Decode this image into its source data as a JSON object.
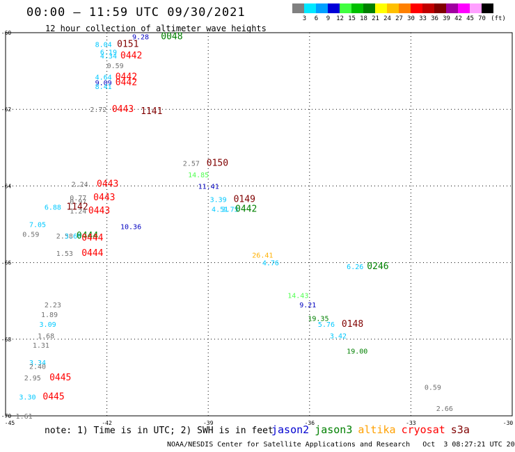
{
  "header": {
    "title": "00:00 – 11:59 UTC 09/30/2021",
    "subtitle": "12 hour collection of altimeter wave heights"
  },
  "legend": {
    "unit": "(ft)",
    "bins": [
      {
        "label": "3",
        "color": "#808080"
      },
      {
        "label": "6",
        "color": "#00e8ff"
      },
      {
        "label": "9",
        "color": "#00a0ff"
      },
      {
        "label": "12",
        "color": "#0000d8"
      },
      {
        "label": "15",
        "color": "#40ff40"
      },
      {
        "label": "18",
        "color": "#00c000"
      },
      {
        "label": "21",
        "color": "#008000"
      },
      {
        "label": "24",
        "color": "#ffff00"
      },
      {
        "label": "27",
        "color": "#ffc000"
      },
      {
        "label": "30",
        "color": "#ff8000"
      },
      {
        "label": "33",
        "color": "#ff0000"
      },
      {
        "label": "36",
        "color": "#c00000"
      },
      {
        "label": "39",
        "color": "#800000"
      },
      {
        "label": "42",
        "color": "#a000a0"
      },
      {
        "label": "45",
        "color": "#ff00ff"
      },
      {
        "label": "70",
        "color": "#ffa0ff"
      },
      {
        "label": "",
        "color": "#000000"
      }
    ]
  },
  "axes": {
    "lon_labels": [
      "-45",
      "-42",
      "-39",
      "-36",
      "-33",
      "-30"
    ],
    "lat_labels": [
      "-60",
      "-62",
      "-64",
      "-66",
      "-68",
      "-70"
    ],
    "lon_range": [
      -45,
      -30
    ],
    "lat_range": [
      -70,
      -60
    ]
  },
  "colors": {
    "gray": "#707070",
    "cyan": "#00c8ff",
    "blue": "#0000c0",
    "ltgreen": "#50ff50",
    "green": "#008000",
    "orange": "#ffb000",
    "red": "#ff0000",
    "darkred": "#800000"
  },
  "observations": [
    {
      "text": "9.28",
      "lon": -41.25,
      "lat": -60.1,
      "c": "blue"
    },
    {
      "text": "0048",
      "lon": -40.4,
      "lat": -60.1,
      "c": "green",
      "pass": true
    },
    {
      "text": "8.04",
      "lon": -42.35,
      "lat": -60.3,
      "c": "cyan"
    },
    {
      "text": "0151",
      "lon": -41.7,
      "lat": -60.3,
      "c": "darkred",
      "pass": true
    },
    {
      "text": "6.19",
      "lon": -42.2,
      "lat": -60.5,
      "c": "cyan"
    },
    {
      "text": "4.34",
      "lon": -42.2,
      "lat": -60.6,
      "c": "cyan"
    },
    {
      "text": "0442",
      "lon": -41.6,
      "lat": -60.6,
      "c": "red",
      "pass": true
    },
    {
      "text": "0.59",
      "lon": -42.0,
      "lat": -60.85,
      "c": "gray"
    },
    {
      "text": "4.64",
      "lon": -42.35,
      "lat": -61.15,
      "c": "cyan"
    },
    {
      "text": "0442",
      "lon": -41.75,
      "lat": -61.15,
      "c": "red",
      "pass": true
    },
    {
      "text": "9.09",
      "lon": -42.35,
      "lat": -61.3,
      "c": "blue"
    },
    {
      "text": "0442",
      "lon": -41.75,
      "lat": -61.3,
      "c": "red",
      "pass": true
    },
    {
      "text": "8.41",
      "lon": -42.35,
      "lat": -61.4,
      "c": "cyan"
    },
    {
      "text": "2.72",
      "lon": -42.5,
      "lat": -62.0,
      "c": "gray"
    },
    {
      "text": "0443",
      "lon": -41.85,
      "lat": -62.0,
      "c": "red",
      "pass": true
    },
    {
      "text": "1141",
      "lon": -41.0,
      "lat": -62.05,
      "c": "darkred",
      "pass": true
    },
    {
      "text": "2.57",
      "lon": -39.75,
      "lat": -63.4,
      "c": "gray"
    },
    {
      "text": "0150",
      "lon": -39.05,
      "lat": -63.4,
      "c": "darkred",
      "pass": true
    },
    {
      "text": "14.85",
      "lon": -39.6,
      "lat": -63.7,
      "c": "ltgreen"
    },
    {
      "text": "11.41",
      "lon": -39.3,
      "lat": -64.0,
      "c": "blue"
    },
    {
      "text": "2.24",
      "lon": -43.05,
      "lat": -63.95,
      "c": "gray"
    },
    {
      "text": "0443",
      "lon": -42.3,
      "lat": -63.95,
      "c": "red",
      "pass": true
    },
    {
      "text": "0.77",
      "lon": -43.1,
      "lat": -64.3,
      "c": "gray"
    },
    {
      "text": "0443",
      "lon": -42.4,
      "lat": -64.3,
      "c": "red",
      "pass": true
    },
    {
      "text": "0.97",
      "lon": -43.1,
      "lat": -64.4,
      "c": "gray"
    },
    {
      "text": "6.88",
      "lon": -43.85,
      "lat": -64.55,
      "c": "cyan"
    },
    {
      "text": "1142",
      "lon": -43.2,
      "lat": -64.55,
      "c": "darkred",
      "pass": true
    },
    {
      "text": "1.24",
      "lon": -43.1,
      "lat": -64.65,
      "c": "gray"
    },
    {
      "text": "0443",
      "lon": -42.55,
      "lat": -64.65,
      "c": "red",
      "pass": true
    },
    {
      "text": "3.39",
      "lon": -38.95,
      "lat": -64.35,
      "c": "cyan"
    },
    {
      "text": "0149",
      "lon": -38.25,
      "lat": -64.35,
      "c": "darkred",
      "pass": true
    },
    {
      "text": "4.51",
      "lon": -38.9,
      "lat": -64.6,
      "c": "cyan"
    },
    {
      "text": "3.75",
      "lon": -38.6,
      "lat": -64.6,
      "c": "cyan"
    },
    {
      "text": "0442",
      "lon": -38.2,
      "lat": -64.6,
      "c": "green",
      "pass": true
    },
    {
      "text": "7.05",
      "lon": -44.3,
      "lat": -65.0,
      "c": "cyan"
    },
    {
      "text": "10.36",
      "lon": -41.6,
      "lat": -65.05,
      "c": "blue"
    },
    {
      "text": "0.59",
      "lon": -44.5,
      "lat": -65.25,
      "c": "gray"
    },
    {
      "text": "2.58",
      "lon": -43.5,
      "lat": -65.3,
      "c": "gray"
    },
    {
      "text": "3.68",
      "lon": -43.25,
      "lat": -65.3,
      "c": "cyan"
    },
    {
      "text": "0444",
      "lon": -42.9,
      "lat": -65.3,
      "c": "green",
      "pass": true
    },
    {
      "text": "0444",
      "lon": -42.75,
      "lat": -65.35,
      "c": "red",
      "pass": true
    },
    {
      "text": "1.53",
      "lon": -43.5,
      "lat": -65.75,
      "c": "gray"
    },
    {
      "text": "0444",
      "lon": -42.75,
      "lat": -65.75,
      "c": "red",
      "pass": true
    },
    {
      "text": "26.41",
      "lon": -37.7,
      "lat": -65.8,
      "c": "orange"
    },
    {
      "text": "4.76",
      "lon": -37.4,
      "lat": -66.0,
      "c": "cyan"
    },
    {
      "text": "6.26",
      "lon": -34.9,
      "lat": -66.1,
      "c": "cyan"
    },
    {
      "text": "0246",
      "lon": -34.3,
      "lat": -66.1,
      "c": "green",
      "pass": true
    },
    {
      "text": "14.43",
      "lon": -36.65,
      "lat": -66.85,
      "c": "ltgreen"
    },
    {
      "text": "9.21",
      "lon": -36.3,
      "lat": -67.1,
      "c": "blue"
    },
    {
      "text": "19.35",
      "lon": -36.05,
      "lat": -67.45,
      "c": "green"
    },
    {
      "text": "5.76",
      "lon": -35.75,
      "lat": -67.6,
      "c": "cyan"
    },
    {
      "text": "0148",
      "lon": -35.05,
      "lat": -67.6,
      "c": "darkred",
      "pass": true
    },
    {
      "text": "3.42",
      "lon": -35.4,
      "lat": -67.9,
      "c": "cyan"
    },
    {
      "text": "19.00",
      "lon": -34.9,
      "lat": -68.3,
      "c": "green"
    },
    {
      "text": "2.23",
      "lon": -43.85,
      "lat": -67.1,
      "c": "gray"
    },
    {
      "text": "1.89",
      "lon": -43.95,
      "lat": -67.35,
      "c": "gray"
    },
    {
      "text": "3.09",
      "lon": -44.0,
      "lat": -67.6,
      "c": "cyan"
    },
    {
      "text": "1.68",
      "lon": -44.05,
      "lat": -67.9,
      "c": "gray"
    },
    {
      "text": "1.31",
      "lon": -44.2,
      "lat": -68.15,
      "c": "gray"
    },
    {
      "text": "3.34",
      "lon": -44.3,
      "lat": -68.6,
      "c": "cyan"
    },
    {
      "text": "2.40",
      "lon": -44.3,
      "lat": -68.7,
      "c": "gray"
    },
    {
      "text": "2.95",
      "lon": -44.45,
      "lat": -69.0,
      "c": "gray"
    },
    {
      "text": "0445",
      "lon": -43.7,
      "lat": -69.0,
      "c": "red",
      "pass": true
    },
    {
      "text": "3.30",
      "lon": -44.6,
      "lat": -69.5,
      "c": "cyan"
    },
    {
      "text": "0445",
      "lon": -43.9,
      "lat": -69.5,
      "c": "red",
      "pass": true
    },
    {
      "text": "1.61",
      "lon": -44.7,
      "lat": -70.0,
      "c": "gray"
    },
    {
      "text": "0.59",
      "lon": -32.6,
      "lat": -69.25,
      "c": "gray"
    },
    {
      "text": "2.66",
      "lon": -32.25,
      "lat": -69.8,
      "c": "gray"
    }
  ],
  "footer": {
    "note": "note: 1) Time is in UTC; 2) SWH is in feet",
    "satellites": [
      {
        "name": "jason2",
        "color": "#0000d0"
      },
      {
        "name": "jason3",
        "color": "#008000"
      },
      {
        "name": "altika",
        "color": "#ffa000"
      },
      {
        "name": "cryosat",
        "color": "#ff0000"
      },
      {
        "name": "s3a",
        "color": "#800000"
      }
    ],
    "credit": "NOAA/NESDIS Center for Satellite Applications and Research   Oct  3 08:27:21 UTC 2021"
  }
}
